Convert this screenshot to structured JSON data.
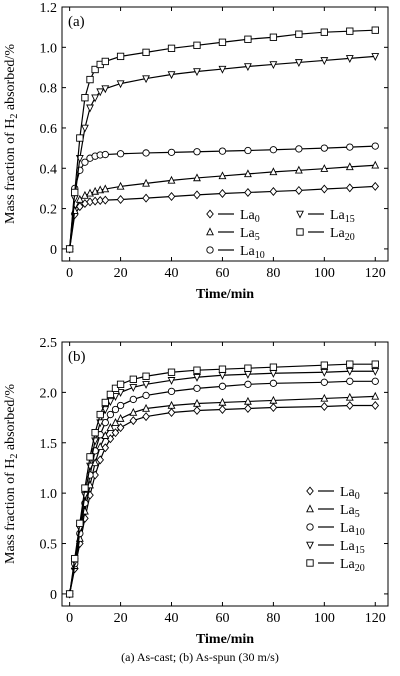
{
  "chart_data": [
    {
      "type": "line",
      "panel_label": "(a)",
      "xlabel": "Time/min",
      "ylabel_main": "Mass fraction of H",
      "ylabel_sub": "2",
      "ylabel_tail": " absorbed/%",
      "xlim": [
        -3,
        125
      ],
      "ylim": [
        -0.06,
        1.2
      ],
      "xticks": [
        0,
        20,
        40,
        60,
        80,
        100,
        120
      ],
      "yticks": [
        0,
        0.2,
        0.4,
        0.6,
        0.8,
        1.0,
        1.2
      ],
      "ytick_labels": [
        "0",
        "0.2",
        "0.4",
        "0.6",
        "0.8",
        "1.0",
        "1.2"
      ],
      "legend_position": "bottom-right",
      "legend_columns": 2,
      "x": [
        0,
        2,
        4,
        6,
        8,
        10,
        12,
        14,
        20,
        30,
        40,
        50,
        60,
        70,
        80,
        90,
        100,
        110,
        120
      ],
      "series": [
        {
          "name": "La",
          "sub": "0",
          "marker": "diamond",
          "values": [
            0,
            0.17,
            0.21,
            0.225,
            0.233,
            0.237,
            0.24,
            0.242,
            0.245,
            0.252,
            0.26,
            0.268,
            0.275,
            0.28,
            0.285,
            0.29,
            0.297,
            0.303,
            0.31
          ]
        },
        {
          "name": "La",
          "sub": "5",
          "marker": "triangle-up",
          "values": [
            0,
            0.19,
            0.245,
            0.265,
            0.276,
            0.285,
            0.292,
            0.297,
            0.31,
            0.325,
            0.34,
            0.352,
            0.362,
            0.372,
            0.382,
            0.39,
            0.398,
            0.407,
            0.415
          ]
        },
        {
          "name": "La",
          "sub": "10",
          "marker": "circle",
          "values": [
            0,
            0.3,
            0.39,
            0.43,
            0.45,
            0.46,
            0.466,
            0.468,
            0.472,
            0.476,
            0.479,
            0.482,
            0.485,
            0.488,
            0.492,
            0.496,
            0.5,
            0.505,
            0.51
          ]
        },
        {
          "name": "La",
          "sub": "15",
          "marker": "triangle-down",
          "values": [
            0,
            0.25,
            0.45,
            0.6,
            0.7,
            0.75,
            0.78,
            0.795,
            0.82,
            0.845,
            0.865,
            0.88,
            0.892,
            0.905,
            0.915,
            0.925,
            0.935,
            0.945,
            0.955
          ]
        },
        {
          "name": "La",
          "sub": "20",
          "marker": "square",
          "values": [
            0,
            0.28,
            0.55,
            0.75,
            0.84,
            0.89,
            0.915,
            0.93,
            0.955,
            0.975,
            0.995,
            1.01,
            1.025,
            1.04,
            1.05,
            1.065,
            1.075,
            1.08,
            1.085
          ]
        }
      ]
    },
    {
      "type": "line",
      "panel_label": "(b)",
      "xlabel": "Time/min",
      "ylabel_main": "Mass fraction of H",
      "ylabel_sub": "2",
      "ylabel_tail": " absorbed/%",
      "xlim": [
        -3,
        125
      ],
      "ylim": [
        -0.12,
        2.5
      ],
      "xticks": [
        0,
        20,
        40,
        60,
        80,
        100,
        120
      ],
      "yticks": [
        0,
        0.5,
        1.0,
        1.5,
        2.0,
        2.5
      ],
      "ytick_labels": [
        "0",
        "0.5",
        "1.0",
        "1.5",
        "2.0",
        "2.5"
      ],
      "legend_position": "bottom-right",
      "legend_columns": 1,
      "x": [
        0,
        2,
        4,
        6,
        8,
        10,
        12,
        14,
        16,
        18,
        20,
        25,
        30,
        40,
        50,
        60,
        70,
        80,
        100,
        110,
        120
      ],
      "series": [
        {
          "name": "La",
          "sub": "0",
          "marker": "diamond",
          "values": [
            0,
            0.25,
            0.5,
            0.75,
            0.98,
            1.18,
            1.33,
            1.45,
            1.54,
            1.6,
            1.65,
            1.72,
            1.76,
            1.8,
            1.82,
            1.83,
            1.84,
            1.85,
            1.86,
            1.87,
            1.87
          ]
        },
        {
          "name": "La",
          "sub": "5",
          "marker": "triangle-up",
          "values": [
            0,
            0.28,
            0.55,
            0.82,
            1.08,
            1.3,
            1.46,
            1.57,
            1.65,
            1.7,
            1.74,
            1.8,
            1.84,
            1.87,
            1.89,
            1.9,
            1.91,
            1.92,
            1.94,
            1.95,
            1.96
          ]
        },
        {
          "name": "La",
          "sub": "10",
          "marker": "circle",
          "values": [
            0,
            0.3,
            0.6,
            0.9,
            1.18,
            1.42,
            1.58,
            1.7,
            1.78,
            1.83,
            1.87,
            1.93,
            1.97,
            2.01,
            2.04,
            2.06,
            2.08,
            2.09,
            2.1,
            2.11,
            2.11
          ]
        },
        {
          "name": "La",
          "sub": "15",
          "marker": "triangle-down",
          "values": [
            0,
            0.32,
            0.65,
            0.98,
            1.27,
            1.52,
            1.7,
            1.83,
            1.91,
            1.96,
            2.0,
            2.05,
            2.08,
            2.12,
            2.15,
            2.17,
            2.18,
            2.19,
            2.2,
            2.21,
            2.21
          ]
        },
        {
          "name": "La",
          "sub": "20",
          "marker": "square",
          "values": [
            0,
            0.35,
            0.7,
            1.05,
            1.36,
            1.6,
            1.78,
            1.9,
            1.98,
            2.04,
            2.08,
            2.13,
            2.16,
            2.2,
            2.22,
            2.23,
            2.24,
            2.25,
            2.27,
            2.28,
            2.28
          ]
        }
      ]
    }
  ],
  "caption": "(a) As-cast; (b) As-spun (30 m/s)"
}
